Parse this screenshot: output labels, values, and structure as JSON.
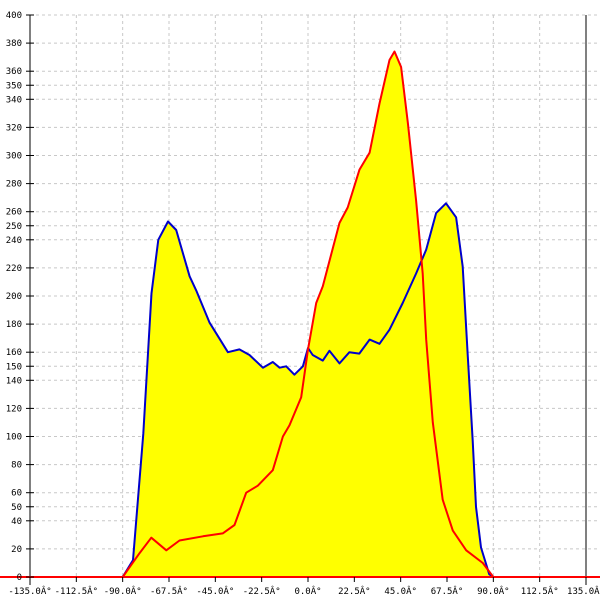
{
  "chart_data": {
    "type": "area",
    "title": "",
    "xlabel": "",
    "ylabel": "",
    "xlim": [
      -135,
      135
    ],
    "ylim": [
      0,
      400
    ],
    "grid": true,
    "fill_color": "#ffff00",
    "x_ticks": [
      -135,
      -112.5,
      -90,
      -67.5,
      -45,
      -22.5,
      0,
      22.5,
      45,
      67.5,
      90,
      112.5,
      135
    ],
    "x_tick_labels": [
      "-135.0Â°",
      "-112.5Â°",
      "-90.0Â°",
      "-67.5Â°",
      "-45.0Â°",
      "-22.5Â°",
      "0.0Â°",
      "22.5Â°",
      "45.0Â°",
      "67.5Â°",
      "90.0Â°",
      "112.5Â°",
      "135.0Â°"
    ],
    "y_ticks": [
      0,
      20,
      40,
      50,
      60,
      80,
      100,
      120,
      140,
      150,
      160,
      180,
      200,
      220,
      240,
      250,
      260,
      280,
      300,
      320,
      340,
      350,
      360,
      380,
      400
    ],
    "y_tick_labels": [
      "0",
      "20",
      "40",
      "50",
      "60",
      "80",
      "100",
      "120",
      "140",
      "150",
      "160",
      "180",
      "200",
      "220",
      "240",
      "250",
      "260",
      "280",
      "300",
      "320",
      "340",
      "350",
      "360",
      "380",
      "400"
    ],
    "series": [
      {
        "color": "#0000cc",
        "x": [
          -90,
          -85,
          -80,
          -76,
          -72.7,
          -68,
          -64,
          -57.5,
          -54.3,
          -47.8,
          -38.9,
          -33.3,
          -28.4,
          -21.9,
          -17.1,
          -13.8,
          -10.6,
          -6.6,
          -2.5,
          0,
          2.3,
          7.2,
          10.4,
          15.3,
          20.1,
          24.9,
          29.9,
          34.7,
          39.6,
          46,
          52.5,
          57.4,
          62.2,
          67,
          71.9,
          75.1,
          77.6,
          80,
          81.6,
          84,
          88,
          90
        ],
        "y": [
          0,
          12,
          102,
          202,
          240,
          253,
          247,
          214,
          204,
          181,
          160,
          162,
          158,
          149,
          153,
          149,
          150,
          144,
          150,
          163,
          158,
          154,
          161,
          152,
          160,
          159,
          169,
          166,
          176,
          195,
          216,
          233,
          259,
          266,
          256,
          221,
          157,
          97,
          50,
          21,
          2,
          0
        ]
      },
      {
        "color": "#ff0000",
        "x": [
          -90,
          -81.8,
          -76.1,
          -68.8,
          -62.4,
          -51,
          -41.4,
          -35.7,
          -30,
          -24.4,
          -17.1,
          -12.2,
          -9,
          -3.3,
          0,
          4,
          7.2,
          15.3,
          19.3,
          25,
          29.9,
          34.7,
          39.6,
          42,
          45.2,
          48.5,
          52.5,
          55.7,
          57.4,
          60.6,
          65.4,
          70.3,
          76.8,
          84.9,
          90
        ],
        "y": [
          0,
          17,
          28,
          19,
          26,
          29,
          31,
          37,
          60,
          65,
          76,
          100,
          108,
          128,
          162,
          195,
          207,
          252,
          263,
          290,
          302,
          337,
          368,
          374,
          363,
          323,
          268,
          216,
          169,
          110,
          55,
          33,
          19,
          10,
          0
        ]
      }
    ]
  }
}
